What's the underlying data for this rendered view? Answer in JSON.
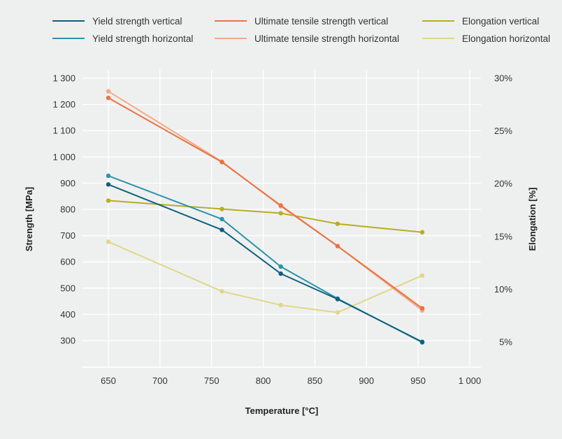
{
  "chart_data": {
    "type": "line",
    "xlabel": "Temperature [°C]",
    "ylabel": "Strength [MPa]",
    "y2label": "Elongation [%]",
    "xlim": [
      620,
      1010
    ],
    "ylim": [
      220,
      1320
    ],
    "y2lim": [
      2.5,
      30.8
    ],
    "x_ticks": [
      650,
      700,
      750,
      800,
      850,
      900,
      950,
      1000
    ],
    "x_tick_labels": [
      "650",
      "700",
      "750",
      "800",
      "850",
      "900",
      "950",
      "1 000"
    ],
    "y_ticks": [
      300,
      400,
      500,
      600,
      700,
      800,
      900,
      1000,
      1100,
      1200,
      1300
    ],
    "y_tick_labels": [
      "300",
      "400",
      "500",
      "600",
      "700",
      "800",
      "900",
      "1 000",
      "1 100",
      "1 200",
      "1 300"
    ],
    "y2_ticks": [
      5,
      10,
      15,
      20,
      25,
      30
    ],
    "y2_tick_labels": [
      "5%",
      "10%",
      "15%",
      "20%",
      "25%",
      "30%"
    ],
    "grid": true,
    "legend_position": "top",
    "series": [
      {
        "name": "Yield strength vertical",
        "axis": "left",
        "color": "#0e5f7f",
        "x": [
          650,
          760,
          817,
          872,
          954
        ],
        "y": [
          895,
          722,
          555,
          458,
          295
        ]
      },
      {
        "name": "Yield strength horizontal",
        "axis": "left",
        "color": "#2a93aa",
        "x": [
          650,
          760,
          817,
          872,
          954
        ],
        "y": [
          928,
          763,
          582,
          460,
          293
        ]
      },
      {
        "name": "Ultimate tensile strength vertical",
        "axis": "left",
        "color": "#ec7143",
        "x": [
          650,
          760,
          817,
          872,
          954
        ],
        "y": [
          1225,
          980,
          815,
          660,
          423
        ]
      },
      {
        "name": "Ultimate tensile strength horizontal",
        "axis": "left",
        "color": "#f3a988",
        "x": [
          650,
          760,
          817,
          872,
          954
        ],
        "y": [
          1250,
          982,
          812,
          660,
          415
        ]
      },
      {
        "name": "Elongation vertical",
        "axis": "right",
        "color": "#b9ad1e",
        "x": [
          650,
          760,
          817,
          872,
          954
        ],
        "y": [
          18.4,
          17.6,
          17.2,
          16.2,
          15.4
        ]
      },
      {
        "name": "Elongation horizontal",
        "axis": "right",
        "color": "#e2d68a",
        "x": [
          650,
          760,
          817,
          872,
          954
        ],
        "y": [
          14.5,
          9.8,
          8.5,
          7.8,
          11.3
        ]
      }
    ]
  }
}
